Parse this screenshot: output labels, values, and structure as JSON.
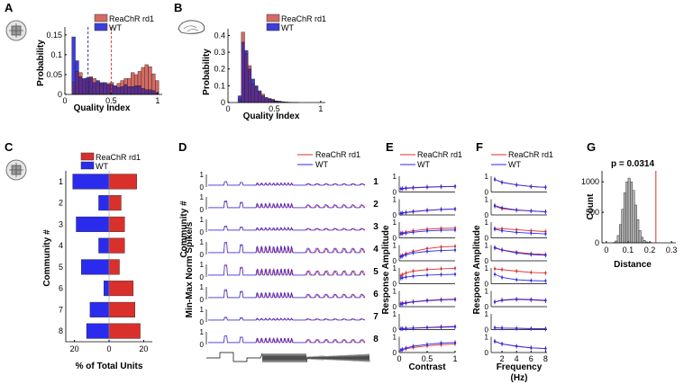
{
  "colors": {
    "reachr": "#d9302b",
    "reachr_fill": "#d56a62",
    "wt": "#2b2bee",
    "wt_fill": "#3d3ddc",
    "overlap": "#5a2d8e",
    "hist_gray": "#b4b4b4",
    "dashed_wt": "#22229a",
    "dashed_reachr": "#d9302b"
  },
  "panels": {
    "A": "A",
    "B": "B",
    "C": "C",
    "D": "D",
    "E": "E",
    "F": "F",
    "G": "G"
  },
  "legend": {
    "reachr": "ReaChR rd1",
    "wt": "WT"
  },
  "chart_data": [
    {
      "id": "A",
      "type": "bar",
      "title": "",
      "xlabel": "Quality Index",
      "ylabel": "Probability",
      "xlim": [
        0,
        1.05
      ],
      "ylim": [
        0,
        0.17
      ],
      "xticks": [
        0,
        0.5,
        1
      ],
      "xtick_labels": [
        "0",
        "0.5",
        "1"
      ],
      "yticks": [
        0,
        0.05,
        0.1,
        0.15
      ],
      "ytick_labels": [
        "0",
        "0.05",
        "0.1",
        "0.15"
      ],
      "bin_start": 0.0,
      "bin_width": 0.0375,
      "series": [
        {
          "name": "ReaChR rd1",
          "values": [
            0,
            0,
            0.03,
            0.058,
            0.055,
            0.04,
            0.042,
            0.045,
            0.04,
            0.035,
            0.025,
            0.03,
            0.028,
            0.03,
            0.022,
            0.028,
            0.035,
            0.04,
            0.04,
            0.055,
            0.05,
            0.058,
            0.068,
            0.075,
            0.07,
            0.052,
            0.035,
            0
          ]
        },
        {
          "name": "WT",
          "values": [
            0,
            0,
            0.145,
            0.085,
            0.045,
            0.04,
            0.042,
            0.042,
            0.03,
            0.035,
            0.03,
            0.03,
            0.025,
            0.025,
            0.022,
            0.018,
            0.02,
            0.025,
            0.02,
            0.02,
            0.022,
            0.022,
            0.015,
            0.012,
            0.012,
            0.01,
            0.005,
            0
          ]
        }
      ],
      "vlines": [
        {
          "x": 0.25,
          "series": "WT"
        },
        {
          "x": 0.5,
          "series": "ReaChR rd1"
        }
      ]
    },
    {
      "id": "B",
      "type": "bar",
      "title": "",
      "xlabel": "Quality Index",
      "ylabel": "Probability",
      "xlim": [
        0,
        1.05
      ],
      "ylim": [
        0,
        0.44
      ],
      "xticks": [
        0,
        0.5,
        1
      ],
      "xtick_labels": [
        "0",
        "0.5",
        "1"
      ],
      "yticks": [
        0,
        0.1,
        0.2,
        0.3,
        0.4
      ],
      "ytick_labels": [
        "0",
        "0.1",
        "0.2",
        "0.3",
        "0.4"
      ],
      "bin_start": 0.0,
      "bin_width": 0.036,
      "series": [
        {
          "name": "ReaChR rd1",
          "values": [
            0,
            0,
            0,
            0.02,
            0.42,
            0.29,
            0.22,
            0.11,
            0.09,
            0.06,
            0.05,
            0.03,
            0.025,
            0.02,
            0.01,
            0.008,
            0.005,
            0.003,
            0.002,
            0.001,
            0.001,
            0,
            0,
            0,
            0,
            0,
            0,
            0
          ]
        },
        {
          "name": "WT",
          "values": [
            0,
            0,
            0,
            0.04,
            0.36,
            0.31,
            0.2,
            0.14,
            0.1,
            0.07,
            0.04,
            0.03,
            0.02,
            0.015,
            0.008,
            0.006,
            0.004,
            0.002,
            0.001,
            0.001,
            0,
            0,
            0,
            0,
            0,
            0,
            0,
            0
          ]
        }
      ]
    },
    {
      "id": "C",
      "type": "bar",
      "orientation": "horizontal",
      "xlabel": "% of Total Units",
      "ylabel": "Community #",
      "xlim": [
        -25,
        25
      ],
      "xticks": [
        -20,
        0,
        20
      ],
      "xtick_labels": [
        "20",
        "0",
        "20"
      ],
      "categories": [
        "1",
        "2",
        "3",
        "4",
        "5",
        "6",
        "7",
        "8"
      ],
      "series": [
        {
          "name": "ReaChR rd1",
          "values": [
            16,
            7,
            9,
            9,
            6,
            14,
            15,
            18
          ]
        },
        {
          "name": "WT",
          "values": [
            -21,
            -6,
            -19,
            -6,
            -16,
            -3,
            -11,
            -13
          ]
        }
      ]
    },
    {
      "id": "D",
      "type": "line",
      "ylabel": "Min-Max Norm Spike/s",
      "row_label": "Community #",
      "categories": [
        "1",
        "2",
        "3",
        "4",
        "5",
        "6",
        "7",
        "8"
      ],
      "yticks": [
        0,
        1
      ],
      "ytick_labels": [
        "0",
        "1"
      ],
      "series": [
        {
          "name": "ReaChR rd1"
        },
        {
          "name": "WT"
        }
      ]
    },
    {
      "id": "E",
      "type": "line",
      "xlabel": "Contrast",
      "ylabel": "Response Amplitude",
      "x": [
        0.03,
        0.06,
        0.12,
        0.25,
        0.5,
        0.75,
        1.0
      ],
      "xticks": [
        0,
        0.5,
        1
      ],
      "xtick_labels": [
        "0",
        "0.5",
        "1"
      ],
      "yticks": [
        0,
        1
      ],
      "ytick_labels": [
        "0",
        "1"
      ],
      "series": [
        {
          "name": "ReaChR rd1",
          "rows": [
            [
              0.2,
              0.21,
              0.23,
              0.26,
              0.3,
              0.33,
              0.35
            ],
            [
              0.1,
              0.12,
              0.15,
              0.2,
              0.28,
              0.35,
              0.38
            ],
            [
              0.3,
              0.32,
              0.36,
              0.45,
              0.55,
              0.6,
              0.62
            ],
            [
              0.3,
              0.35,
              0.45,
              0.6,
              0.78,
              0.88,
              0.92
            ],
            [
              0.5,
              0.58,
              0.68,
              0.8,
              0.9,
              0.95,
              0.98
            ],
            [
              0.2,
              0.22,
              0.26,
              0.32,
              0.4,
              0.45,
              0.48
            ],
            [
              0.05,
              0.06,
              0.08,
              0.1,
              0.14,
              0.18,
              0.2
            ],
            [
              0.15,
              0.18,
              0.24,
              0.32,
              0.42,
              0.5,
              0.55
            ]
          ]
        },
        {
          "name": "WT",
          "rows": [
            [
              0.2,
              0.22,
              0.25,
              0.28,
              0.32,
              0.34,
              0.36
            ],
            [
              0.1,
              0.12,
              0.16,
              0.22,
              0.3,
              0.35,
              0.37
            ],
            [
              0.25,
              0.27,
              0.3,
              0.36,
              0.44,
              0.48,
              0.5
            ],
            [
              0.25,
              0.3,
              0.38,
              0.5,
              0.6,
              0.65,
              0.68
            ],
            [
              0.35,
              0.38,
              0.42,
              0.48,
              0.55,
              0.58,
              0.6
            ],
            [
              0.15,
              0.18,
              0.22,
              0.3,
              0.38,
              0.42,
              0.45
            ],
            [
              0.05,
              0.06,
              0.07,
              0.09,
              0.12,
              0.15,
              0.17
            ],
            [
              0.15,
              0.2,
              0.28,
              0.4,
              0.52,
              0.6,
              0.64
            ]
          ]
        }
      ]
    },
    {
      "id": "F",
      "type": "line",
      "xlabel": "Frequency",
      "xlabel2": "(Hz)",
      "ylabel": "Response Amplitude",
      "x": [
        1,
        2,
        4,
        6,
        8
      ],
      "xticks": [
        2,
        4,
        6,
        8
      ],
      "xtick_labels": [
        "2",
        "4",
        "6",
        "8"
      ],
      "yticks": [
        0,
        1
      ],
      "ytick_labels": [
        "0",
        "1"
      ],
      "series": [
        {
          "name": "ReaChR rd1",
          "rows": [
            [
              0.8,
              0.6,
              0.45,
              0.35,
              0.3
            ],
            [
              0.55,
              0.4,
              0.3,
              0.25,
              0.2
            ],
            [
              0.6,
              0.58,
              0.52,
              0.45,
              0.4
            ],
            [
              0.8,
              0.7,
              0.55,
              0.45,
              0.4
            ],
            [
              0.95,
              0.9,
              0.8,
              0.72,
              0.68
            ],
            [
              0.3,
              0.4,
              0.45,
              0.42,
              0.38
            ],
            [
              0.1,
              0.1,
              0.08,
              0.06,
              0.05
            ],
            [
              0.7,
              0.55,
              0.4,
              0.3,
              0.25
            ]
          ]
        },
        {
          "name": "WT",
          "rows": [
            [
              0.8,
              0.62,
              0.45,
              0.35,
              0.3
            ],
            [
              0.6,
              0.45,
              0.32,
              0.25,
              0.2
            ],
            [
              0.55,
              0.45,
              0.35,
              0.3,
              0.25
            ],
            [
              0.85,
              0.68,
              0.5,
              0.4,
              0.35
            ],
            [
              0.6,
              0.4,
              0.25,
              0.2,
              0.18
            ],
            [
              0.3,
              0.42,
              0.48,
              0.45,
              0.4
            ],
            [
              0.12,
              0.1,
              0.08,
              0.06,
              0.05
            ],
            [
              0.72,
              0.55,
              0.4,
              0.3,
              0.25
            ]
          ]
        }
      ]
    },
    {
      "id": "G",
      "type": "bar",
      "title": "p = 0.0314",
      "xlabel": "Distance",
      "ylabel": "Count",
      "xlim": [
        -0.02,
        0.32
      ],
      "ylim": [
        0,
        1180
      ],
      "xticks": [
        0,
        0.1,
        0.2,
        0.3
      ],
      "xtick_labels": [
        "0",
        "0.1",
        "0.2",
        "0.3"
      ],
      "yticks": [
        0,
        500,
        1000
      ],
      "ytick_labels": [
        "0",
        "500",
        "1000"
      ],
      "bin_start": 0.03,
      "bin_width": 0.01,
      "values": [
        5,
        30,
        120,
        300,
        550,
        820,
        1000,
        1060,
        1000,
        860,
        620,
        380,
        200,
        90,
        40,
        15,
        6,
        2
      ],
      "observed": 0.228
    }
  ]
}
